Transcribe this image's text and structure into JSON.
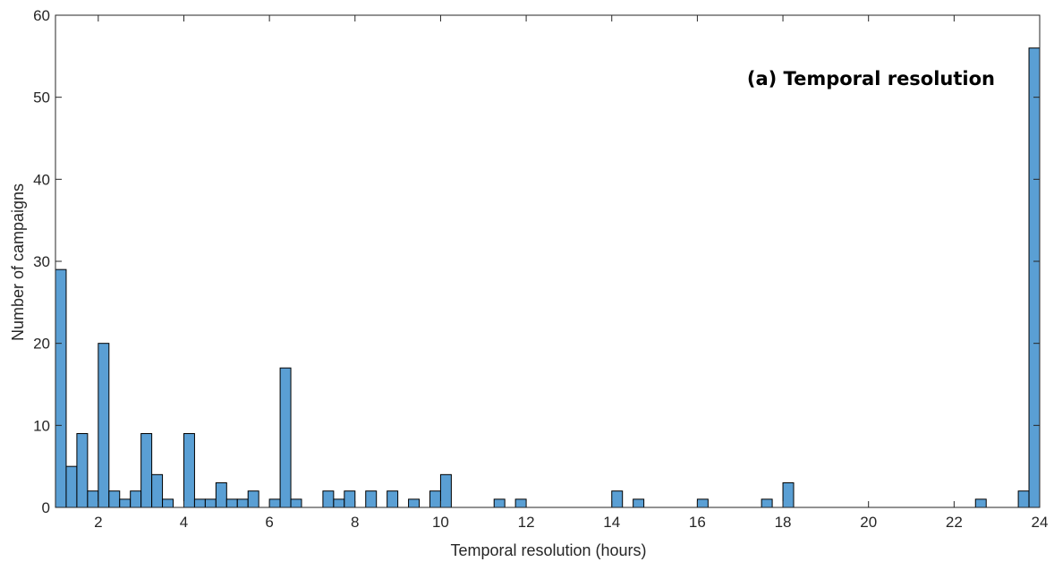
{
  "chart_data": {
    "type": "bar",
    "annotation": "(a)  Temporal resolution",
    "xlabel": "Temporal resolution (hours)",
    "ylabel": "Number of campaigns",
    "xlim": [
      1,
      24
    ],
    "ylim": [
      0,
      60
    ],
    "xticks": [
      "2",
      "4",
      "6",
      "8",
      "10",
      "12",
      "14",
      "16",
      "18",
      "20",
      "22",
      "24"
    ],
    "yticks": [
      "0",
      "10",
      "20",
      "30",
      "40",
      "50",
      "60"
    ],
    "bin_width": 0.25,
    "bins": [
      {
        "x": 1.0,
        "y": 29
      },
      {
        "x": 1.25,
        "y": 5
      },
      {
        "x": 1.5,
        "y": 9
      },
      {
        "x": 1.75,
        "y": 2
      },
      {
        "x": 2.0,
        "y": 20
      },
      {
        "x": 2.25,
        "y": 2
      },
      {
        "x": 2.5,
        "y": 1
      },
      {
        "x": 2.75,
        "y": 2
      },
      {
        "x": 3.0,
        "y": 9
      },
      {
        "x": 3.25,
        "y": 4
      },
      {
        "x": 3.5,
        "y": 1
      },
      {
        "x": 4.0,
        "y": 9
      },
      {
        "x": 4.25,
        "y": 1
      },
      {
        "x": 4.5,
        "y": 1
      },
      {
        "x": 4.75,
        "y": 3
      },
      {
        "x": 5.0,
        "y": 1
      },
      {
        "x": 5.25,
        "y": 1
      },
      {
        "x": 5.5,
        "y": 2
      },
      {
        "x": 6.0,
        "y": 1
      },
      {
        "x": 6.25,
        "y": 17
      },
      {
        "x": 6.5,
        "y": 1
      },
      {
        "x": 7.25,
        "y": 2
      },
      {
        "x": 7.5,
        "y": 1
      },
      {
        "x": 7.75,
        "y": 2
      },
      {
        "x": 8.25,
        "y": 2
      },
      {
        "x": 8.75,
        "y": 2
      },
      {
        "x": 9.25,
        "y": 1
      },
      {
        "x": 9.75,
        "y": 2
      },
      {
        "x": 10.0,
        "y": 4
      },
      {
        "x": 11.25,
        "y": 1
      },
      {
        "x": 11.75,
        "y": 1
      },
      {
        "x": 14.0,
        "y": 2
      },
      {
        "x": 14.5,
        "y": 1
      },
      {
        "x": 16.0,
        "y": 1
      },
      {
        "x": 17.5,
        "y": 1
      },
      {
        "x": 18.0,
        "y": 3
      },
      {
        "x": 22.5,
        "y": 1
      },
      {
        "x": 23.5,
        "y": 2
      },
      {
        "x": 23.75,
        "y": 56
      }
    ],
    "colors": {
      "bar_fill": "#5a9fd4",
      "bar_edge": "#000000",
      "axis": "#262626"
    },
    "grid": false,
    "legend": "none"
  }
}
